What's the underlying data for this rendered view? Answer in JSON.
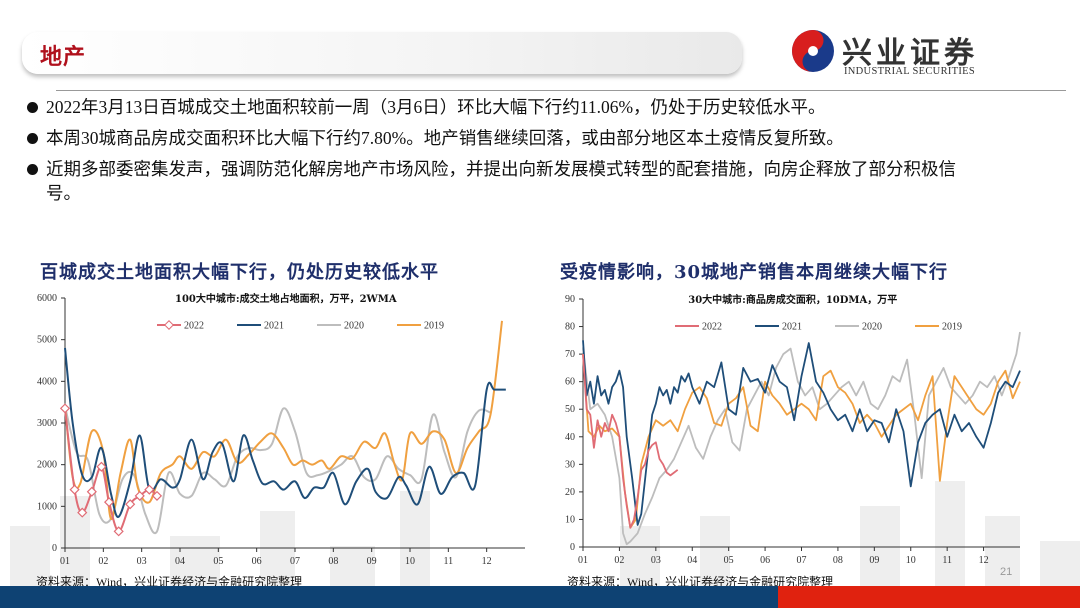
{
  "header": {
    "section_title": "地产",
    "logo_cn": "兴业证券",
    "logo_en": "INDUSTRIAL SECURITIES"
  },
  "bullets": [
    "2022年3月13日百城成交土地面积较前一周（3月6日）环比大幅下行约11.06%，仍处于历史较低水平。",
    "本周30城商品房成交面积环比大幅下行约7.80%。地产销售继续回落，或由部分地区本土疫情反复所致。",
    "近期多部委密集发声，强调防范化解房地产市场风险，并提出向新发展模式转型的配套措施，向房企释放了部分积极信号。"
  ],
  "left_panel": {
    "title": "百城成交土地面积大幅下行，仍处历史较低水平",
    "source": "资料来源：Wind，兴业证券经济与金融研究院整理"
  },
  "right_panel": {
    "title": "受疫情影响，30城地产销售本周继续大幅下行",
    "source": "资料来源：Wind，兴业证券经济与金融研究院整理"
  },
  "page_number": "21",
  "colors": {
    "2022": "#e06c75",
    "2021": "#1f4e79",
    "2020": "#bdbdbd",
    "2019": "#f0a040",
    "title_red": "#b0101c",
    "title_navy": "#1f2f6b",
    "footer_blue": "#0e4273",
    "footer_red": "#e0220f"
  },
  "chart_data": [
    {
      "type": "line",
      "title": "100大中城市:成交土地占地面积，万平，2WMA",
      "xlabel": "",
      "ylabel": "",
      "ylim": [
        0,
        6000
      ],
      "yticks": [
        0,
        1000,
        2000,
        3000,
        4000,
        5000,
        6000
      ],
      "xticks": [
        "01",
        "02",
        "03",
        "04",
        "05",
        "06",
        "07",
        "08",
        "09",
        "10",
        "11",
        "12"
      ],
      "legend": [
        "2022",
        "2021",
        "2020",
        "2019"
      ],
      "legend_position": "top",
      "grid": false,
      "series": [
        {
          "name": "2022",
          "markers": true,
          "x": [
            0.0,
            0.25,
            0.45,
            0.7,
            0.95,
            1.15,
            1.4,
            1.7,
            1.95,
            2.2,
            2.4
          ],
          "values": [
            3350,
            1400,
            850,
            1350,
            1950,
            1100,
            400,
            1050,
            1250,
            1400,
            1250
          ]
        },
        {
          "name": "2021",
          "x": [
            0.0,
            0.2,
            0.45,
            0.7,
            0.95,
            1.2,
            1.4,
            1.7,
            1.95,
            2.2,
            2.5,
            2.8,
            3.0,
            3.3,
            3.6,
            3.85,
            4.1,
            4.4,
            4.65,
            4.9,
            5.15,
            5.45,
            5.7,
            6.0,
            6.25,
            6.5,
            6.75,
            7.0,
            7.3,
            7.6,
            7.9,
            8.1,
            8.4,
            8.7,
            8.9,
            9.2,
            9.5,
            9.8,
            10.1,
            10.4,
            10.7,
            11.0,
            11.2,
            11.5
          ],
          "values": [
            4800,
            3000,
            1750,
            1700,
            2400,
            1300,
            750,
            1600,
            2700,
            1400,
            1650,
            1450,
            1650,
            2600,
            1650,
            2300,
            2500,
            1600,
            2700,
            2100,
            1550,
            1600,
            1400,
            1600,
            1200,
            1450,
            1450,
            1800,
            1050,
            1600,
            1900,
            1350,
            1200,
            1700,
            1500,
            1050,
            1950,
            1300,
            1700,
            1800,
            1500,
            3800,
            3800,
            3800
          ]
        },
        {
          "name": "2020",
          "x": [
            0.0,
            0.3,
            0.6,
            0.9,
            1.2,
            1.5,
            1.8,
            2.1,
            2.4,
            2.7,
            3.0,
            3.3,
            3.6,
            3.9,
            4.2,
            4.5,
            4.8,
            5.1,
            5.4,
            5.7,
            6.0,
            6.3,
            6.6,
            6.9,
            7.2,
            7.5,
            7.8,
            8.1,
            8.4,
            8.7,
            9.0,
            9.3,
            9.6,
            9.9,
            10.2,
            10.5,
            10.8,
            11.1
          ],
          "values": [
            3400,
            2300,
            2100,
            800,
            700,
            1650,
            1750,
            800,
            400,
            1800,
            1300,
            1250,
            1800,
            1650,
            1500,
            2200,
            2400,
            2350,
            2500,
            3350,
            2800,
            1800,
            1750,
            1850,
            2000,
            2200,
            1700,
            1650,
            2200,
            1900,
            1750,
            1650,
            3200,
            2300,
            1700,
            2800,
            3300,
            3250
          ]
        },
        {
          "name": "2019",
          "x": [
            0.0,
            0.2,
            0.4,
            0.7,
            1.0,
            1.2,
            1.45,
            1.7,
            1.9,
            2.2,
            2.5,
            2.8,
            3.0,
            3.3,
            3.6,
            3.9,
            4.2,
            4.5,
            4.8,
            5.1,
            5.4,
            5.7,
            5.95,
            6.2,
            6.45,
            6.7,
            6.9,
            7.2,
            7.5,
            7.8,
            8.1,
            8.35,
            8.6,
            8.8,
            9.0,
            9.3,
            9.6,
            9.9,
            10.2,
            10.5,
            10.8,
            11.1,
            11.4
          ],
          "values": [
            3400,
            1700,
            1550,
            2800,
            2300,
            700,
            1800,
            2600,
            1450,
            1100,
            1800,
            2000,
            2200,
            1900,
            2300,
            2200,
            2600,
            2050,
            2250,
            2550,
            2750,
            2400,
            2000,
            2100,
            2000,
            2100,
            1900,
            2200,
            2150,
            2550,
            2400,
            2750,
            2000,
            1650,
            2750,
            2500,
            2800,
            2600,
            1800,
            2400,
            2800,
            3200,
            5450
          ]
        }
      ]
    },
    {
      "type": "line",
      "title": "30大中城市:商品房成交面积，10DMA，万平",
      "xlabel": "",
      "ylabel": "",
      "ylim": [
        0,
        90
      ],
      "yticks": [
        0,
        10,
        20,
        30,
        40,
        50,
        60,
        70,
        80,
        90
      ],
      "xticks": [
        "01",
        "02",
        "03",
        "04",
        "05",
        "06",
        "07",
        "08",
        "09",
        "10",
        "11",
        "12"
      ],
      "legend": [
        "2022",
        "2021",
        "2020",
        "2019"
      ],
      "legend_position": "top",
      "grid": false,
      "series": [
        {
          "name": "2022",
          "x": [
            0.0,
            0.1,
            0.2,
            0.3,
            0.4,
            0.5,
            0.6,
            0.7,
            0.8,
            0.9,
            1.0,
            1.1,
            1.2,
            1.3,
            1.4,
            1.5,
            1.6,
            1.7,
            1.8,
            1.9,
            2.0,
            2.1,
            2.2,
            2.3,
            2.4,
            2.5,
            2.6
          ],
          "values": [
            70,
            50,
            48,
            36,
            46,
            40,
            45,
            42,
            48,
            45,
            40,
            25,
            15,
            7,
            10,
            18,
            28,
            30,
            35,
            37,
            38,
            32,
            30,
            27,
            26,
            27,
            28
          ]
        },
        {
          "name": "2021",
          "x": [
            0.0,
            0.1,
            0.2,
            0.3,
            0.4,
            0.5,
            0.6,
            0.7,
            0.8,
            0.9,
            1.0,
            1.1,
            1.2,
            1.35,
            1.5,
            1.6,
            1.75,
            1.9,
            2.0,
            2.1,
            2.2,
            2.3,
            2.4,
            2.5,
            2.6,
            2.7,
            2.8,
            2.9,
            3.0,
            3.1,
            3.2,
            3.4,
            3.6,
            3.8,
            4.0,
            4.2,
            4.4,
            4.6,
            4.8,
            5.0,
            5.2,
            5.4,
            5.6,
            5.8,
            6.0,
            6.2,
            6.4,
            6.6,
            6.8,
            7.0,
            7.2,
            7.4,
            7.6,
            7.8,
            8.0,
            8.2,
            8.4,
            8.6,
            8.8,
            9.0,
            9.2,
            9.4,
            9.6,
            9.8,
            10.0,
            10.2,
            10.4,
            10.6,
            10.8,
            11.0,
            11.2,
            11.4,
            11.6,
            11.8,
            12.0
          ],
          "values": [
            75,
            55,
            60,
            52,
            62,
            55,
            57,
            52,
            58,
            60,
            64,
            58,
            40,
            25,
            8,
            12,
            30,
            48,
            52,
            58,
            55,
            57,
            52,
            58,
            56,
            62,
            60,
            63,
            58,
            55,
            52,
            60,
            58,
            67,
            50,
            48,
            65,
            60,
            61,
            56,
            66,
            60,
            58,
            46,
            62,
            74,
            60,
            56,
            50,
            46,
            48,
            42,
            50,
            42,
            46,
            45,
            38,
            50,
            42,
            22,
            38,
            45,
            48,
            50,
            40,
            48,
            42,
            45,
            40,
            36,
            45,
            56,
            60,
            58,
            64
          ]
        },
        {
          "name": "2020",
          "x": [
            0.0,
            0.2,
            0.4,
            0.6,
            0.8,
            1.0,
            1.1,
            1.2,
            1.3,
            1.5,
            1.7,
            1.9,
            2.1,
            2.3,
            2.5,
            2.7,
            2.9,
            3.1,
            3.3,
            3.5,
            3.7,
            3.9,
            4.1,
            4.3,
            4.5,
            4.7,
            4.9,
            5.1,
            5.3,
            5.5,
            5.7,
            5.9,
            6.1,
            6.3,
            6.5,
            6.7,
            6.9,
            7.1,
            7.3,
            7.5,
            7.7,
            7.9,
            8.1,
            8.3,
            8.5,
            8.7,
            8.9,
            9.1,
            9.3,
            9.5,
            9.7,
            9.9,
            10.1,
            10.3,
            10.5,
            10.7,
            10.9,
            11.1,
            11.3,
            11.5,
            11.7,
            11.9,
            12.0
          ],
          "values": [
            72,
            50,
            52,
            48,
            40,
            25,
            5,
            1,
            2,
            5,
            12,
            18,
            25,
            28,
            32,
            38,
            44,
            36,
            32,
            40,
            46,
            50,
            38,
            35,
            50,
            55,
            60,
            55,
            65,
            70,
            72,
            60,
            55,
            58,
            50,
            52,
            55,
            58,
            60,
            55,
            60,
            52,
            50,
            55,
            62,
            60,
            68,
            48,
            25,
            55,
            60,
            65,
            58,
            55,
            52,
            55,
            60,
            58,
            62,
            55,
            62,
            70,
            78
          ]
        },
        {
          "name": "2019",
          "x": [
            0.0,
            0.15,
            0.3,
            0.45,
            0.6,
            0.8,
            1.0,
            1.15,
            1.3,
            1.45,
            1.6,
            1.8,
            2.0,
            2.2,
            2.4,
            2.6,
            2.8,
            3.0,
            3.2,
            3.4,
            3.6,
            3.8,
            4.0,
            4.2,
            4.4,
            4.6,
            4.8,
            5.0,
            5.2,
            5.4,
            5.6,
            5.8,
            6.0,
            6.2,
            6.4,
            6.6,
            6.8,
            7.0,
            7.2,
            7.4,
            7.6,
            7.8,
            8.0,
            8.2,
            8.4,
            8.6,
            8.8,
            9.0,
            9.2,
            9.4,
            9.6,
            9.8,
            10.0,
            10.2,
            10.4,
            10.6,
            10.8,
            11.0,
            11.2,
            11.4,
            11.6,
            11.8,
            12.0
          ],
          "values": [
            70,
            42,
            40,
            44,
            42,
            43,
            40,
            20,
            7,
            10,
            30,
            40,
            46,
            44,
            46,
            42,
            50,
            56,
            58,
            54,
            45,
            44,
            52,
            54,
            58,
            44,
            42,
            60,
            55,
            52,
            48,
            50,
            52,
            50,
            46,
            62,
            64,
            58,
            56,
            52,
            45,
            48,
            45,
            40,
            44,
            48,
            50,
            52,
            46,
            55,
            62,
            24,
            45,
            62,
            58,
            54,
            50,
            48,
            52,
            60,
            64,
            54,
            60
          ]
        }
      ]
    }
  ]
}
